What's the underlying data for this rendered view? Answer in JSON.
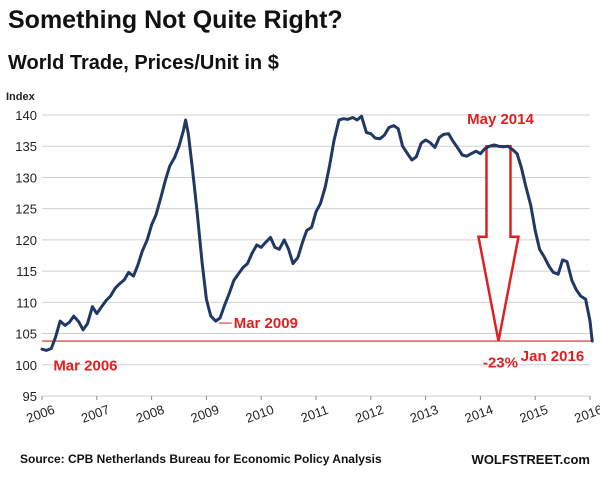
{
  "header": {
    "title": "Something Not Quite Right?",
    "subtitle": "World Trade, Prices/Unit in $"
  },
  "footer": {
    "source": "Source: CPB Netherlands Bureau for Economic Policy Analysis",
    "brand": "WOLFSTREET.com"
  },
  "colors": {
    "line": "#1f3864",
    "annotation": "#e02020",
    "grid": "#d0d0d0"
  },
  "chart_data": {
    "type": "line",
    "ylabel": "Index",
    "ylim": [
      95,
      140
    ],
    "yticks": [
      95,
      100,
      105,
      110,
      115,
      120,
      125,
      130,
      135,
      140
    ],
    "xlim": [
      2006,
      2016
    ],
    "xticks": [
      "2006",
      "2007",
      "2008",
      "2009",
      "2010",
      "2011",
      "2012",
      "2013",
      "2014",
      "2015",
      "2016"
    ],
    "grid": "horizontal",
    "series": [
      {
        "points": [
          [
            2006.0,
            102.5
          ],
          [
            2006.08,
            102.3
          ],
          [
            2006.17,
            102.6
          ],
          [
            2006.25,
            104.5
          ],
          [
            2006.33,
            107.0
          ],
          [
            2006.42,
            106.3
          ],
          [
            2006.5,
            106.8
          ],
          [
            2006.58,
            107.8
          ],
          [
            2006.67,
            106.9
          ],
          [
            2006.75,
            105.6
          ],
          [
            2006.83,
            106.6
          ],
          [
            2006.92,
            109.3
          ],
          [
            2007.0,
            108.2
          ],
          [
            2007.08,
            109.2
          ],
          [
            2007.17,
            110.3
          ],
          [
            2007.25,
            111.0
          ],
          [
            2007.33,
            112.2
          ],
          [
            2007.42,
            113.0
          ],
          [
            2007.5,
            113.6
          ],
          [
            2007.58,
            114.8
          ],
          [
            2007.67,
            114.2
          ],
          [
            2007.75,
            116.0
          ],
          [
            2007.83,
            118.2
          ],
          [
            2007.92,
            120.0
          ],
          [
            2008.0,
            122.4
          ],
          [
            2008.08,
            124.0
          ],
          [
            2008.17,
            126.8
          ],
          [
            2008.25,
            129.5
          ],
          [
            2008.33,
            131.8
          ],
          [
            2008.42,
            133.2
          ],
          [
            2008.5,
            135.0
          ],
          [
            2008.58,
            137.5
          ],
          [
            2008.62,
            139.2
          ],
          [
            2008.67,
            137.0
          ],
          [
            2008.75,
            131.0
          ],
          [
            2008.83,
            124.5
          ],
          [
            2008.92,
            116.5
          ],
          [
            2009.0,
            110.5
          ],
          [
            2009.08,
            107.8
          ],
          [
            2009.17,
            107.0
          ],
          [
            2009.25,
            107.5
          ],
          [
            2009.33,
            109.5
          ],
          [
            2009.42,
            111.5
          ],
          [
            2009.5,
            113.5
          ],
          [
            2009.58,
            114.5
          ],
          [
            2009.67,
            115.6
          ],
          [
            2009.75,
            116.2
          ],
          [
            2009.83,
            117.8
          ],
          [
            2009.92,
            119.2
          ],
          [
            2010.0,
            118.8
          ],
          [
            2010.08,
            119.6
          ],
          [
            2010.17,
            120.4
          ],
          [
            2010.25,
            118.8
          ],
          [
            2010.33,
            118.5
          ],
          [
            2010.42,
            120.0
          ],
          [
            2010.5,
            118.5
          ],
          [
            2010.58,
            116.2
          ],
          [
            2010.67,
            117.2
          ],
          [
            2010.75,
            119.5
          ],
          [
            2010.83,
            121.5
          ],
          [
            2010.92,
            122.0
          ],
          [
            2011.0,
            124.5
          ],
          [
            2011.08,
            125.8
          ],
          [
            2011.17,
            128.5
          ],
          [
            2011.25,
            132.0
          ],
          [
            2011.33,
            136.0
          ],
          [
            2011.42,
            139.2
          ],
          [
            2011.5,
            139.4
          ],
          [
            2011.58,
            139.3
          ],
          [
            2011.67,
            139.6
          ],
          [
            2011.75,
            139.2
          ],
          [
            2011.83,
            139.8
          ],
          [
            2011.92,
            137.2
          ],
          [
            2012.0,
            137.0
          ],
          [
            2012.08,
            136.3
          ],
          [
            2012.17,
            136.2
          ],
          [
            2012.25,
            136.8
          ],
          [
            2012.33,
            138.0
          ],
          [
            2012.42,
            138.3
          ],
          [
            2012.5,
            137.8
          ],
          [
            2012.58,
            135.0
          ],
          [
            2012.67,
            133.8
          ],
          [
            2012.75,
            132.8
          ],
          [
            2012.83,
            133.3
          ],
          [
            2012.92,
            135.5
          ],
          [
            2013.0,
            136.0
          ],
          [
            2013.08,
            135.6
          ],
          [
            2013.17,
            134.8
          ],
          [
            2013.25,
            136.4
          ],
          [
            2013.33,
            136.9
          ],
          [
            2013.42,
            137.0
          ],
          [
            2013.5,
            135.8
          ],
          [
            2013.58,
            134.8
          ],
          [
            2013.67,
            133.6
          ],
          [
            2013.75,
            133.4
          ],
          [
            2013.83,
            133.8
          ],
          [
            2013.92,
            134.2
          ],
          [
            2014.0,
            133.8
          ],
          [
            2014.08,
            134.6
          ],
          [
            2014.17,
            135.0
          ],
          [
            2014.25,
            135.2
          ],
          [
            2014.33,
            135.0
          ],
          [
            2014.42,
            134.9
          ],
          [
            2014.5,
            135.0
          ],
          [
            2014.58,
            134.5
          ],
          [
            2014.67,
            133.8
          ],
          [
            2014.75,
            131.5
          ],
          [
            2014.83,
            128.5
          ],
          [
            2014.92,
            125.5
          ],
          [
            2015.0,
            121.5
          ],
          [
            2015.08,
            118.5
          ],
          [
            2015.17,
            117.2
          ],
          [
            2015.25,
            115.8
          ],
          [
            2015.33,
            114.8
          ],
          [
            2015.42,
            114.5
          ],
          [
            2015.5,
            116.8
          ],
          [
            2015.58,
            116.5
          ],
          [
            2015.67,
            113.5
          ],
          [
            2015.75,
            112.0
          ],
          [
            2015.83,
            111.0
          ],
          [
            2015.92,
            110.5
          ],
          [
            2016.0,
            107.0
          ],
          [
            2016.04,
            103.8
          ]
        ]
      }
    ],
    "reference_line": {
      "y": 103.8,
      "from": 2006.0,
      "to": 2016.04
    },
    "annotations": [
      {
        "text": "Mar 2006",
        "x": 2006.17,
        "y": 102.6
      },
      {
        "text": "Mar 2009",
        "x": 2009.17,
        "y": 107.0
      },
      {
        "text": "May 2014",
        "x": 2014.33,
        "y": 135.0
      },
      {
        "text": "-23%",
        "x": 2014.33,
        "y": 101.5
      },
      {
        "text": "Jan 2016",
        "x": 2016.04,
        "y": 103.8
      }
    ],
    "arrow": {
      "x": 2014.33,
      "from_y": 135.0,
      "to_y": 103.8
    }
  }
}
